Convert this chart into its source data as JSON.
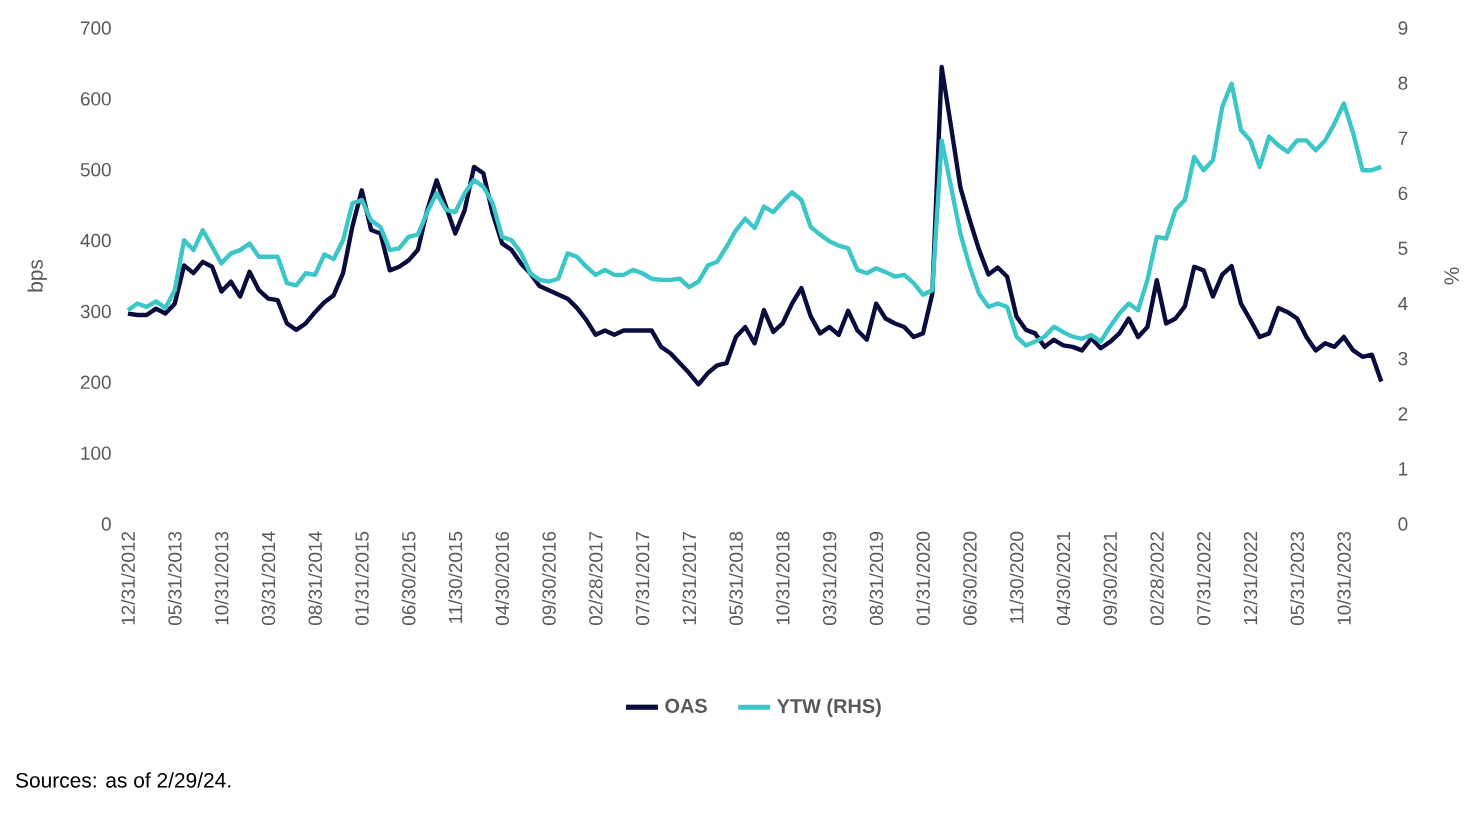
{
  "chart_data": {
    "type": "line",
    "categories": [
      "12/31/2012",
      null,
      null,
      null,
      null,
      "05/31/2013",
      null,
      null,
      null,
      null,
      "10/31/2013",
      null,
      null,
      null,
      null,
      "03/31/2014",
      null,
      null,
      null,
      null,
      "08/31/2014",
      null,
      null,
      null,
      null,
      "01/31/2015",
      null,
      null,
      null,
      null,
      "06/30/2015",
      null,
      null,
      null,
      null,
      "11/30/2015",
      null,
      null,
      null,
      null,
      "04/30/2016",
      null,
      null,
      null,
      null,
      "09/30/2016",
      null,
      null,
      null,
      null,
      "02/28/2017",
      null,
      null,
      null,
      null,
      "07/31/2017",
      null,
      null,
      null,
      null,
      "12/31/2017",
      null,
      null,
      null,
      null,
      "05/31/2018",
      null,
      null,
      null,
      null,
      "10/31/2018",
      null,
      null,
      null,
      null,
      "03/31/2019",
      null,
      null,
      null,
      null,
      "08/31/2019",
      null,
      null,
      null,
      null,
      "01/31/2020",
      null,
      null,
      null,
      null,
      "06/30/2020",
      null,
      null,
      null,
      null,
      "11/30/2020",
      null,
      null,
      null,
      null,
      "04/30/2021",
      null,
      null,
      null,
      null,
      "09/30/2021",
      null,
      null,
      null,
      null,
      "02/28/2022",
      null,
      null,
      null,
      null,
      "07/31/2022",
      null,
      null,
      null,
      null,
      "12/31/2022",
      null,
      null,
      null,
      null,
      "05/31/2023",
      null,
      null,
      null,
      null,
      "10/31/2023",
      null,
      null,
      null,
      null
    ],
    "series": [
      {
        "name": "OAS",
        "color": "#0b0c3e",
        "values": [
          297,
          295,
          295,
          304,
          297,
          311,
          365,
          354,
          370,
          363,
          328,
          342,
          321,
          356,
          330,
          318,
          316,
          283,
          274,
          283,
          299,
          313,
          323,
          354,
          420,
          471,
          415,
          410,
          358,
          363,
          372,
          387,
          443,
          485,
          448,
          410,
          443,
          504,
          495,
          438,
          396,
          387,
          368,
          354,
          336,
          330,
          324,
          318,
          305,
          288,
          267,
          273,
          267,
          273,
          273,
          273,
          273,
          250,
          241,
          227,
          213,
          197,
          213,
          224,
          227,
          264,
          278,
          255,
          302,
          271,
          283,
          311,
          333,
          293,
          269,
          278,
          267,
          301,
          273,
          260,
          311,
          290,
          283,
          278,
          264,
          269,
          325,
          645,
          561,
          475,
          429,
          387,
          352,
          362,
          349,
          293,
          274,
          269,
          250,
          260,
          252,
          250,
          245,
          262,
          248,
          257,
          269,
          290,
          264,
          278,
          344,
          283,
          290,
          307,
          363,
          358,
          321,
          352,
          364,
          311,
          288,
          264,
          269,
          305,
          299,
          290,
          264,
          245,
          255,
          250,
          264,
          245,
          236,
          239,
          201
        ]
      },
      {
        "name": "YTW (RHS)",
        "color": "#3cc6c8",
        "axis": "y2",
        "values": [
          3.88,
          4.0,
          3.94,
          4.04,
          3.92,
          4.24,
          5.15,
          4.97,
          5.33,
          5.03,
          4.73,
          4.91,
          4.97,
          5.09,
          4.85,
          4.85,
          4.85,
          4.37,
          4.33,
          4.55,
          4.52,
          4.89,
          4.81,
          5.15,
          5.82,
          5.88,
          5.51,
          5.39,
          4.97,
          5.0,
          5.21,
          5.25,
          5.66,
          6.0,
          5.7,
          5.66,
          6.0,
          6.24,
          6.12,
          5.82,
          5.21,
          5.15,
          4.93,
          4.55,
          4.43,
          4.4,
          4.45,
          4.91,
          4.85,
          4.67,
          4.52,
          4.61,
          4.52,
          4.52,
          4.61,
          4.55,
          4.45,
          4.43,
          4.43,
          4.45,
          4.3,
          4.4,
          4.69,
          4.76,
          5.03,
          5.33,
          5.54,
          5.37,
          5.76,
          5.66,
          5.85,
          6.02,
          5.88,
          5.39,
          5.25,
          5.13,
          5.05,
          5.0,
          4.61,
          4.55,
          4.64,
          4.57,
          4.49,
          4.52,
          4.37,
          4.16,
          4.24,
          6.96,
          6.12,
          5.27,
          4.67,
          4.18,
          3.94,
          4.0,
          3.94,
          3.4,
          3.24,
          3.31,
          3.4,
          3.58,
          3.48,
          3.4,
          3.36,
          3.43,
          3.31,
          3.58,
          3.82,
          4.0,
          3.88,
          4.43,
          5.21,
          5.18,
          5.7,
          5.88,
          6.66,
          6.42,
          6.6,
          7.57,
          7.99,
          7.15,
          6.96,
          6.48,
          7.03,
          6.87,
          6.75,
          6.96,
          6.96,
          6.78,
          6.96,
          7.27,
          7.63,
          7.09,
          6.42,
          6.42,
          6.48
        ]
      }
    ],
    "ylim": [
      0,
      700
    ],
    "yticks": [
      0,
      100,
      200,
      300,
      400,
      500,
      600,
      700
    ],
    "y2lim": [
      0,
      9
    ],
    "y2ticks": [
      0,
      1,
      2,
      3,
      4,
      5,
      6,
      7,
      8,
      9
    ],
    "ylabel": "bps",
    "y2label": "%",
    "legend": "bottom",
    "annotations": [
      "Sources: as of 2/29/24."
    ]
  }
}
